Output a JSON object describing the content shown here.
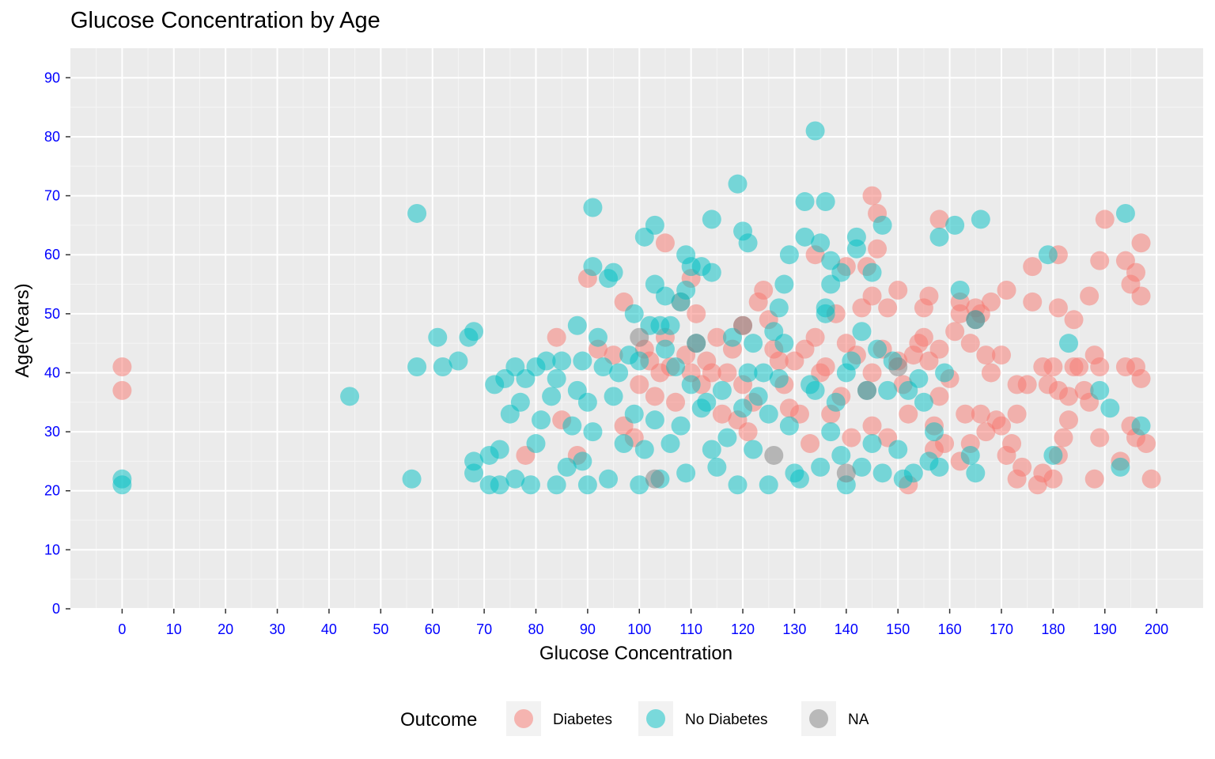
{
  "chart_data": {
    "type": "scatter",
    "title": "Glucose Concentration by Age",
    "xlabel": "Glucose Concentration",
    "ylabel": "Age(Years)",
    "xlim": [
      -10,
      209
    ],
    "ylim": [
      0,
      95
    ],
    "x_ticks": [
      0,
      10,
      20,
      30,
      40,
      50,
      60,
      70,
      80,
      90,
      100,
      110,
      120,
      130,
      140,
      150,
      160,
      170,
      180,
      190,
      200
    ],
    "y_ticks": [
      0,
      10,
      20,
      30,
      40,
      50,
      60,
      70,
      80,
      90
    ],
    "grid": true,
    "tick_label_color": "#0000FF",
    "panel_background": "#EBEBEB",
    "legend": {
      "title": "Outcome",
      "position": "bottom",
      "entries": [
        {
          "label": "Diabetes",
          "color": "#F8766D"
        },
        {
          "label": "No Diabetes",
          "color": "#00BFC4"
        },
        {
          "label": "NA",
          "color": "#7F7F7F"
        }
      ]
    },
    "series": [
      {
        "name": "Diabetes",
        "color": "#F8766D",
        "points": [
          [
            0,
            41
          ],
          [
            0,
            37
          ],
          [
            78,
            26
          ],
          [
            84,
            46
          ],
          [
            85,
            32
          ],
          [
            88,
            26
          ],
          [
            90,
            56
          ],
          [
            92,
            44
          ],
          [
            95,
            43
          ],
          [
            97,
            52
          ],
          [
            97,
            31
          ],
          [
            99,
            29
          ],
          [
            100,
            38
          ],
          [
            101,
            44
          ],
          [
            102,
            42
          ],
          [
            103,
            36
          ],
          [
            104,
            40
          ],
          [
            105,
            62
          ],
          [
            105,
            46
          ],
          [
            106,
            41
          ],
          [
            107,
            35
          ],
          [
            108,
            52
          ],
          [
            109,
            43
          ],
          [
            110,
            40
          ],
          [
            110,
            56
          ],
          [
            111,
            50
          ],
          [
            112,
            38
          ],
          [
            113,
            42
          ],
          [
            114,
            40
          ],
          [
            115,
            46
          ],
          [
            116,
            33
          ],
          [
            117,
            40
          ],
          [
            118,
            44
          ],
          [
            119,
            32
          ],
          [
            120,
            38
          ],
          [
            120,
            48
          ],
          [
            121,
            30
          ],
          [
            122,
            35
          ],
          [
            123,
            52
          ],
          [
            124,
            54
          ],
          [
            125,
            49
          ],
          [
            126,
            44
          ],
          [
            127,
            42
          ],
          [
            128,
            38
          ],
          [
            129,
            34
          ],
          [
            130,
            42
          ],
          [
            131,
            33
          ],
          [
            132,
            44
          ],
          [
            133,
            28
          ],
          [
            134,
            60
          ],
          [
            134,
            46
          ],
          [
            135,
            40
          ],
          [
            136,
            41
          ],
          [
            137,
            33
          ],
          [
            138,
            50
          ],
          [
            139,
            36
          ],
          [
            140,
            58
          ],
          [
            140,
            45
          ],
          [
            141,
            29
          ],
          [
            142,
            43
          ],
          [
            143,
            51
          ],
          [
            144,
            58
          ],
          [
            145,
            70
          ],
          [
            145,
            53
          ],
          [
            145,
            40
          ],
          [
            145,
            31
          ],
          [
            146,
            61
          ],
          [
            146,
            67
          ],
          [
            147,
            44
          ],
          [
            148,
            51
          ],
          [
            148,
            29
          ],
          [
            150,
            54
          ],
          [
            150,
            42
          ],
          [
            151,
            38
          ],
          [
            152,
            33
          ],
          [
            152,
            21
          ],
          [
            153,
            43
          ],
          [
            154,
            45
          ],
          [
            155,
            51
          ],
          [
            155,
            46
          ],
          [
            156,
            53
          ],
          [
            156,
            42
          ],
          [
            157,
            31
          ],
          [
            157,
            27
          ],
          [
            158,
            66
          ],
          [
            158,
            44
          ],
          [
            158,
            36
          ],
          [
            159,
            28
          ],
          [
            160,
            39
          ],
          [
            161,
            47
          ],
          [
            162,
            52
          ],
          [
            162,
            50
          ],
          [
            162,
            25
          ],
          [
            163,
            33
          ],
          [
            164,
            45
          ],
          [
            164,
            28
          ],
          [
            165,
            51
          ],
          [
            166,
            50
          ],
          [
            166,
            33
          ],
          [
            167,
            43
          ],
          [
            167,
            30
          ],
          [
            168,
            40
          ],
          [
            168,
            52
          ],
          [
            169,
            32
          ],
          [
            170,
            43
          ],
          [
            170,
            31
          ],
          [
            171,
            54
          ],
          [
            171,
            26
          ],
          [
            172,
            28
          ],
          [
            173,
            38
          ],
          [
            173,
            33
          ],
          [
            173,
            22
          ],
          [
            174,
            24
          ],
          [
            175,
            38
          ],
          [
            176,
            58
          ],
          [
            176,
            52
          ],
          [
            177,
            21
          ],
          [
            178,
            41
          ],
          [
            178,
            23
          ],
          [
            179,
            38
          ],
          [
            180,
            41
          ],
          [
            180,
            22
          ],
          [
            181,
            51
          ],
          [
            181,
            60
          ],
          [
            181,
            37
          ],
          [
            181,
            26
          ],
          [
            182,
            29
          ],
          [
            183,
            36
          ],
          [
            183,
            32
          ],
          [
            184,
            49
          ],
          [
            184,
            41
          ],
          [
            185,
            41
          ],
          [
            186,
            37
          ],
          [
            187,
            53
          ],
          [
            187,
            35
          ],
          [
            188,
            43
          ],
          [
            188,
            22
          ],
          [
            189,
            59
          ],
          [
            189,
            41
          ],
          [
            189,
            29
          ],
          [
            190,
            66
          ],
          [
            193,
            25
          ],
          [
            194,
            59
          ],
          [
            194,
            41
          ],
          [
            195,
            55
          ],
          [
            195,
            31
          ],
          [
            196,
            57
          ],
          [
            196,
            41
          ],
          [
            196,
            29
          ],
          [
            197,
            62
          ],
          [
            197,
            53
          ],
          [
            197,
            39
          ],
          [
            198,
            28
          ],
          [
            199,
            22
          ]
        ]
      },
      {
        "name": "No Diabetes",
        "color": "#00BFC4",
        "points": [
          [
            0,
            22
          ],
          [
            0,
            21
          ],
          [
            44,
            36
          ],
          [
            56,
            22
          ],
          [
            57,
            67
          ],
          [
            57,
            41
          ],
          [
            61,
            46
          ],
          [
            62,
            41
          ],
          [
            65,
            42
          ],
          [
            67,
            46
          ],
          [
            68,
            47
          ],
          [
            68,
            25
          ],
          [
            68,
            23
          ],
          [
            71,
            26
          ],
          [
            71,
            21
          ],
          [
            72,
            38
          ],
          [
            73,
            27
          ],
          [
            73,
            21
          ],
          [
            74,
            39
          ],
          [
            75,
            33
          ],
          [
            76,
            41
          ],
          [
            76,
            22
          ],
          [
            77,
            35
          ],
          [
            78,
            39
          ],
          [
            79,
            21
          ],
          [
            80,
            28
          ],
          [
            80,
            41
          ],
          [
            81,
            32
          ],
          [
            82,
            42
          ],
          [
            83,
            36
          ],
          [
            84,
            21
          ],
          [
            84,
            39
          ],
          [
            85,
            42
          ],
          [
            86,
            24
          ],
          [
            87,
            31
          ],
          [
            88,
            48
          ],
          [
            88,
            37
          ],
          [
            89,
            42
          ],
          [
            89,
            25
          ],
          [
            90,
            35
          ],
          [
            90,
            21
          ],
          [
            91,
            58
          ],
          [
            91,
            68
          ],
          [
            91,
            30
          ],
          [
            92,
            46
          ],
          [
            93,
            41
          ],
          [
            94,
            56
          ],
          [
            94,
            22
          ],
          [
            95,
            57
          ],
          [
            95,
            36
          ],
          [
            96,
            40
          ],
          [
            97,
            28
          ],
          [
            98,
            43
          ],
          [
            99,
            50
          ],
          [
            99,
            33
          ],
          [
            100,
            42
          ],
          [
            100,
            21
          ],
          [
            101,
            63
          ],
          [
            101,
            27
          ],
          [
            102,
            48
          ],
          [
            103,
            65
          ],
          [
            103,
            55
          ],
          [
            103,
            32
          ],
          [
            104,
            48
          ],
          [
            104,
            22
          ],
          [
            105,
            53
          ],
          [
            105,
            44
          ],
          [
            106,
            48
          ],
          [
            106,
            28
          ],
          [
            107,
            41
          ],
          [
            108,
            52
          ],
          [
            108,
            31
          ],
          [
            109,
            60
          ],
          [
            109,
            54
          ],
          [
            109,
            23
          ],
          [
            110,
            58
          ],
          [
            110,
            38
          ],
          [
            111,
            45
          ],
          [
            112,
            58
          ],
          [
            112,
            34
          ],
          [
            113,
            35
          ],
          [
            114,
            66
          ],
          [
            114,
            57
          ],
          [
            114,
            27
          ],
          [
            115,
            24
          ],
          [
            116,
            37
          ],
          [
            117,
            29
          ],
          [
            118,
            46
          ],
          [
            119,
            72
          ],
          [
            119,
            21
          ],
          [
            120,
            64
          ],
          [
            120,
            34
          ],
          [
            121,
            62
          ],
          [
            121,
            40
          ],
          [
            122,
            45
          ],
          [
            122,
            27
          ],
          [
            123,
            36
          ],
          [
            124,
            40
          ],
          [
            125,
            33
          ],
          [
            125,
            21
          ],
          [
            126,
            47
          ],
          [
            127,
            51
          ],
          [
            127,
            39
          ],
          [
            128,
            55
          ],
          [
            128,
            45
          ],
          [
            129,
            60
          ],
          [
            129,
            31
          ],
          [
            130,
            23
          ],
          [
            131,
            22
          ],
          [
            132,
            69
          ],
          [
            132,
            63
          ],
          [
            133,
            38
          ],
          [
            134,
            81
          ],
          [
            134,
            37
          ],
          [
            135,
            62
          ],
          [
            135,
            24
          ],
          [
            136,
            69
          ],
          [
            136,
            51
          ],
          [
            136,
            50
          ],
          [
            137,
            59
          ],
          [
            137,
            55
          ],
          [
            137,
            30
          ],
          [
            138,
            35
          ],
          [
            139,
            57
          ],
          [
            139,
            26
          ],
          [
            140,
            40
          ],
          [
            140,
            21
          ],
          [
            141,
            42
          ],
          [
            142,
            63
          ],
          [
            142,
            61
          ],
          [
            143,
            47
          ],
          [
            143,
            24
          ],
          [
            144,
            37
          ],
          [
            145,
            57
          ],
          [
            145,
            28
          ],
          [
            146,
            44
          ],
          [
            147,
            65
          ],
          [
            147,
            23
          ],
          [
            148,
            37
          ],
          [
            149,
            42
          ],
          [
            150,
            27
          ],
          [
            151,
            22
          ],
          [
            152,
            37
          ],
          [
            153,
            23
          ],
          [
            154,
            39
          ],
          [
            155,
            35
          ],
          [
            156,
            25
          ],
          [
            157,
            30
          ],
          [
            158,
            63
          ],
          [
            158,
            24
          ],
          [
            159,
            40
          ],
          [
            161,
            65
          ],
          [
            162,
            54
          ],
          [
            164,
            26
          ],
          [
            165,
            49
          ],
          [
            165,
            23
          ],
          [
            166,
            66
          ],
          [
            179,
            60
          ],
          [
            180,
            26
          ],
          [
            183,
            45
          ],
          [
            189,
            37
          ],
          [
            191,
            34
          ],
          [
            193,
            24
          ],
          [
            194,
            67
          ],
          [
            197,
            31
          ]
        ]
      },
      {
        "name": "NA",
        "color": "#7F7F7F",
        "points": [
          [
            100,
            46
          ],
          [
            103,
            22
          ],
          [
            111,
            45
          ],
          [
            120,
            48
          ],
          [
            126,
            26
          ],
          [
            140,
            23
          ],
          [
            144,
            37
          ],
          [
            150,
            41
          ],
          [
            165,
            49
          ]
        ]
      }
    ]
  }
}
